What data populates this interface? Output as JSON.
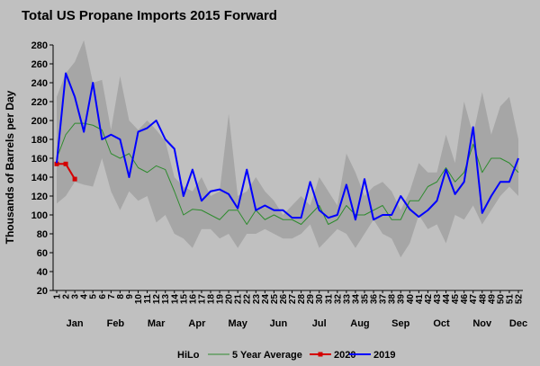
{
  "chart_data": {
    "type": "line",
    "title": "Total US Propane Imports 2015 Forward",
    "ylabel": "Thousands of Barrels per Day",
    "xlabel": "",
    "ylim": [
      20,
      280
    ],
    "yticks": [
      20,
      40,
      60,
      80,
      100,
      120,
      140,
      160,
      180,
      200,
      220,
      240,
      260,
      280
    ],
    "weeks": [
      1,
      2,
      3,
      4,
      5,
      6,
      7,
      8,
      9,
      10,
      11,
      12,
      13,
      14,
      15,
      16,
      17,
      18,
      19,
      20,
      21,
      22,
      23,
      24,
      25,
      26,
      27,
      28,
      29,
      30,
      31,
      32,
      33,
      34,
      35,
      36,
      37,
      38,
      39,
      40,
      41,
      42,
      43,
      44,
      45,
      46,
      47,
      48,
      49,
      50,
      51,
      52
    ],
    "months": [
      {
        "label": "Jan",
        "center_week": 3.0
      },
      {
        "label": "Feb",
        "center_week": 7.5
      },
      {
        "label": "Mar",
        "center_week": 12.0
      },
      {
        "label": "Apr",
        "center_week": 16.5
      },
      {
        "label": "May",
        "center_week": 21.0
      },
      {
        "label": "Jun",
        "center_week": 25.5
      },
      {
        "label": "Jul",
        "center_week": 30.0
      },
      {
        "label": "Aug",
        "center_week": 34.5
      },
      {
        "label": "Sep",
        "center_week": 39.0
      },
      {
        "label": "Oct",
        "center_week": 43.5
      },
      {
        "label": "Nov",
        "center_week": 48.0
      },
      {
        "label": "Dec",
        "center_week": 52.0
      }
    ],
    "series": [
      {
        "name": "HiLo",
        "kind": "band",
        "color": "#a6a6a6",
        "high": [
          225,
          250,
          262,
          285,
          240,
          243,
          190,
          247,
          200,
          190,
          200,
          190,
          178,
          140,
          130,
          125,
          140,
          120,
          125,
          207,
          120,
          125,
          140,
          125,
          115,
          100,
          110,
          120,
          110,
          140,
          125,
          110,
          165,
          145,
          120,
          130,
          135,
          125,
          105,
          125,
          155,
          145,
          145,
          185,
          155,
          220,
          185,
          230,
          185,
          215,
          225,
          180
        ],
        "low": [
          112,
          120,
          135,
          132,
          130,
          160,
          125,
          105,
          125,
          115,
          120,
          92,
          100,
          80,
          75,
          65,
          85,
          85,
          75,
          80,
          65,
          80,
          80,
          85,
          80,
          75,
          75,
          80,
          90,
          65,
          75,
          85,
          80,
          65,
          80,
          95,
          80,
          75,
          55,
          70,
          100,
          85,
          90,
          70,
          100,
          95,
          110,
          90,
          105,
          120,
          130,
          120
        ]
      },
      {
        "name": "5 Year Average",
        "kind": "line",
        "color": "#2e8b2e",
        "values": [
          160,
          185,
          197,
          197,
          195,
          190,
          165,
          160,
          165,
          150,
          145,
          152,
          148,
          125,
          100,
          106,
          105,
          100,
          95,
          105,
          105,
          90,
          105,
          95,
          100,
          95,
          95,
          90,
          100,
          110,
          90,
          95,
          110,
          100,
          100,
          105,
          110,
          95,
          95,
          115,
          115,
          130,
          135,
          150,
          135,
          145,
          175,
          145,
          160,
          160,
          155,
          145
        ]
      },
      {
        "name": "2020",
        "kind": "line",
        "color": "#d40000",
        "marker": "square",
        "values": [
          154,
          154,
          138
        ]
      },
      {
        "name": "2019",
        "kind": "line",
        "color": "#0000ff",
        "values": [
          155,
          250,
          225,
          188,
          240,
          180,
          185,
          180,
          140,
          188,
          192,
          200,
          180,
          170,
          120,
          148,
          115,
          125,
          127,
          122,
          107,
          148,
          105,
          110,
          105,
          105,
          97,
          97,
          135,
          105,
          97,
          100,
          132,
          95,
          138,
          95,
          100,
          100,
          120,
          106,
          98,
          105,
          115,
          148,
          122,
          135,
          193,
          102,
          120,
          135,
          135,
          160
        ]
      }
    ]
  },
  "legend": {
    "hilo": "HiLo",
    "avg": "5 Year Average",
    "y2020": "2020",
    "y2019": "2019"
  }
}
